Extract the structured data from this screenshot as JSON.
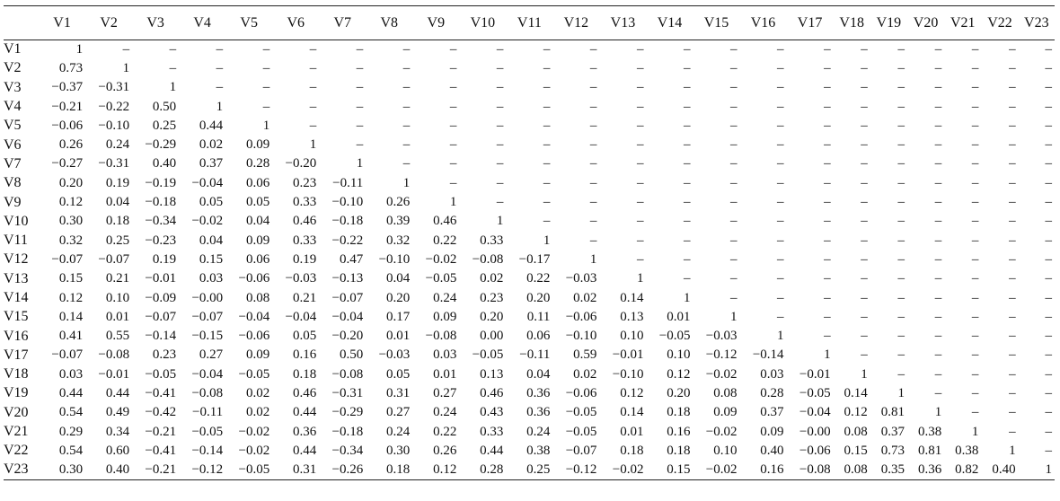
{
  "table": {
    "header": [
      "V1",
      "V2",
      "V3",
      "V4",
      "V5",
      "V6",
      "V7",
      "V8",
      "V9",
      "V10",
      "V11",
      "V12",
      "V13",
      "V14",
      "V15",
      "V16",
      "V17",
      "V18",
      "V19",
      "V20",
      "V21",
      "V22",
      "V23"
    ],
    "rows": [
      [
        "V1",
        "1",
        "–",
        "–",
        "–",
        "–",
        "–",
        "–",
        "–",
        "–",
        "–",
        "–",
        "–",
        "–",
        "–",
        "–",
        "–",
        "–",
        "–",
        "–",
        "–",
        "–",
        "–",
        "–"
      ],
      [
        "V2",
        "0.73",
        "1",
        "–",
        "–",
        "–",
        "–",
        "–",
        "–",
        "–",
        "–",
        "–",
        "–",
        "–",
        "–",
        "–",
        "–",
        "–",
        "–",
        "–",
        "–",
        "–",
        "–",
        "–"
      ],
      [
        "V3",
        "−0.37",
        "−0.31",
        "1",
        "–",
        "–",
        "–",
        "–",
        "–",
        "–",
        "–",
        "–",
        "–",
        "–",
        "–",
        "–",
        "–",
        "–",
        "–",
        "–",
        "–",
        "–",
        "–",
        "–"
      ],
      [
        "V4",
        "−0.21",
        "−0.22",
        "0.50",
        "1",
        "–",
        "–",
        "–",
        "–",
        "–",
        "–",
        "–",
        "–",
        "–",
        "–",
        "–",
        "–",
        "–",
        "–",
        "–",
        "–",
        "–",
        "–",
        "–"
      ],
      [
        "V5",
        "−0.06",
        "−0.10",
        "0.25",
        "0.44",
        "1",
        "–",
        "–",
        "–",
        "–",
        "–",
        "–",
        "–",
        "–",
        "–",
        "–",
        "–",
        "–",
        "–",
        "–",
        "–",
        "–",
        "–",
        "–"
      ],
      [
        "V6",
        "0.26",
        "0.24",
        "−0.29",
        "0.02",
        "0.09",
        "1",
        "–",
        "–",
        "–",
        "–",
        "–",
        "–",
        "–",
        "–",
        "–",
        "–",
        "–",
        "–",
        "–",
        "–",
        "–",
        "–",
        "–"
      ],
      [
        "V7",
        "−0.27",
        "−0.31",
        "0.40",
        "0.37",
        "0.28",
        "−0.20",
        "1",
        "–",
        "–",
        "–",
        "–",
        "–",
        "–",
        "–",
        "–",
        "–",
        "–",
        "–",
        "–",
        "–",
        "–",
        "–",
        "–"
      ],
      [
        "V8",
        "0.20",
        "0.19",
        "−0.19",
        "−0.04",
        "0.06",
        "0.23",
        "−0.11",
        "1",
        "–",
        "–",
        "–",
        "–",
        "–",
        "–",
        "–",
        "–",
        "–",
        "–",
        "–",
        "–",
        "–",
        "–",
        "–"
      ],
      [
        "V9",
        "0.12",
        "0.04",
        "−0.18",
        "0.05",
        "0.05",
        "0.33",
        "−0.10",
        "0.26",
        "1",
        "–",
        "–",
        "–",
        "–",
        "–",
        "–",
        "–",
        "–",
        "–",
        "–",
        "–",
        "–",
        "–",
        "–"
      ],
      [
        "V10",
        "0.30",
        "0.18",
        "−0.34",
        "−0.02",
        "0.04",
        "0.46",
        "−0.18",
        "0.39",
        "0.46",
        "1",
        "–",
        "–",
        "–",
        "–",
        "–",
        "–",
        "–",
        "–",
        "–",
        "–",
        "–",
        "–",
        "–"
      ],
      [
        "V11",
        "0.32",
        "0.25",
        "−0.23",
        "0.04",
        "0.09",
        "0.33",
        "−0.22",
        "0.32",
        "0.22",
        "0.33",
        "1",
        "–",
        "–",
        "–",
        "–",
        "–",
        "–",
        "–",
        "–",
        "–",
        "–",
        "–",
        "–"
      ],
      [
        "V12",
        "−0.07",
        "−0.07",
        "0.19",
        "0.15",
        "0.06",
        "0.19",
        "0.47",
        "−0.10",
        "−0.02",
        "−0.08",
        "−0.17",
        "1",
        "–",
        "–",
        "–",
        "–",
        "–",
        "–",
        "–",
        "–",
        "–",
        "–",
        "–"
      ],
      [
        "V13",
        "0.15",
        "0.21",
        "−0.01",
        "0.03",
        "−0.06",
        "−0.03",
        "−0.13",
        "0.04",
        "−0.05",
        "0.02",
        "0.22",
        "−0.03",
        "1",
        "–",
        "–",
        "–",
        "–",
        "–",
        "–",
        "–",
        "–",
        "–",
        "–"
      ],
      [
        "V14",
        "0.12",
        "0.10",
        "−0.09",
        "−0.00",
        "0.08",
        "0.21",
        "−0.07",
        "0.20",
        "0.24",
        "0.23",
        "0.20",
        "0.02",
        "0.14",
        "1",
        "–",
        "–",
        "–",
        "–",
        "–",
        "–",
        "–",
        "–",
        "–"
      ],
      [
        "V15",
        "0.14",
        "0.01",
        "−0.07",
        "−0.07",
        "−0.04",
        "−0.04",
        "−0.04",
        "0.17",
        "0.09",
        "0.20",
        "0.11",
        "−0.06",
        "0.13",
        "0.01",
        "1",
        "–",
        "–",
        "–",
        "–",
        "–",
        "–",
        "–",
        "–"
      ],
      [
        "V16",
        "0.41",
        "0.55",
        "−0.14",
        "−0.15",
        "−0.06",
        "0.05",
        "−0.20",
        "0.01",
        "−0.08",
        "0.00",
        "0.06",
        "−0.10",
        "0.10",
        "−0.05",
        "−0.03",
        "1",
        "–",
        "–",
        "–",
        "–",
        "–",
        "–",
        "–"
      ],
      [
        "V17",
        "−0.07",
        "−0.08",
        "0.23",
        "0.27",
        "0.09",
        "0.16",
        "0.50",
        "−0.03",
        "0.03",
        "−0.05",
        "−0.11",
        "0.59",
        "−0.01",
        "0.10",
        "−0.12",
        "−0.14",
        "1",
        "–",
        "–",
        "–",
        "–",
        "–",
        "–"
      ],
      [
        "V18",
        "0.03",
        "−0.01",
        "−0.05",
        "−0.04",
        "−0.05",
        "0.18",
        "−0.08",
        "0.05",
        "0.01",
        "0.13",
        "0.04",
        "0.02",
        "−0.10",
        "0.12",
        "−0.02",
        "0.03",
        "−0.01",
        "1",
        "–",
        "–",
        "–",
        "–",
        "–"
      ],
      [
        "V19",
        "0.44",
        "0.44",
        "−0.41",
        "−0.08",
        "0.02",
        "0.46",
        "−0.31",
        "0.31",
        "0.27",
        "0.46",
        "0.36",
        "−0.06",
        "0.12",
        "0.20",
        "0.08",
        "0.28",
        "−0.05",
        "0.14",
        "1",
        "–",
        "–",
        "–",
        "–"
      ],
      [
        "V20",
        "0.54",
        "0.49",
        "−0.42",
        "−0.11",
        "0.02",
        "0.44",
        "−0.29",
        "0.27",
        "0.24",
        "0.43",
        "0.36",
        "−0.05",
        "0.14",
        "0.18",
        "0.09",
        "0.37",
        "−0.04",
        "0.12",
        "0.81",
        "1",
        "–",
        "–",
        "–"
      ],
      [
        "V21",
        "0.29",
        "0.34",
        "−0.21",
        "−0.05",
        "−0.02",
        "0.36",
        "−0.18",
        "0.24",
        "0.22",
        "0.33",
        "0.24",
        "−0.05",
        "0.01",
        "0.16",
        "−0.02",
        "0.09",
        "−0.00",
        "0.08",
        "0.37",
        "0.38",
        "1",
        "–",
        "–"
      ],
      [
        "V22",
        "0.54",
        "0.60",
        "−0.41",
        "−0.14",
        "−0.02",
        "0.44",
        "−0.34",
        "0.30",
        "0.26",
        "0.44",
        "0.38",
        "−0.07",
        "0.18",
        "0.18",
        "0.10",
        "0.40",
        "−0.06",
        "0.15",
        "0.73",
        "0.81",
        "0.38",
        "1",
        "–"
      ],
      [
        "V23",
        "0.30",
        "0.40",
        "−0.21",
        "−0.12",
        "−0.05",
        "0.31",
        "−0.26",
        "0.18",
        "0.12",
        "0.28",
        "0.25",
        "−0.12",
        "−0.02",
        "0.15",
        "−0.02",
        "0.16",
        "−0.08",
        "0.08",
        "0.35",
        "0.36",
        "0.82",
        "0.40",
        "1"
      ]
    ]
  }
}
